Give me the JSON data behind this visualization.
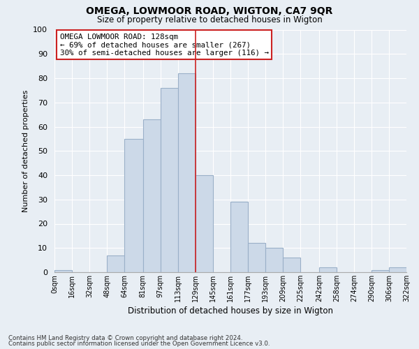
{
  "title": "OMEGA, LOWMOOR ROAD, WIGTON, CA7 9QR",
  "subtitle": "Size of property relative to detached houses in Wigton",
  "xlabel": "Distribution of detached houses by size in Wigton",
  "ylabel": "Number of detached properties",
  "bar_color": "#ccd9e8",
  "bar_edge_color": "#9ab0c8",
  "vline_color": "#cc2222",
  "vline_x": 129,
  "bin_edges": [
    0,
    16,
    32,
    48,
    64,
    81,
    97,
    113,
    129,
    145,
    161,
    177,
    193,
    209,
    225,
    242,
    258,
    274,
    290,
    306,
    322
  ],
  "bar_heights": [
    1,
    0,
    0,
    7,
    55,
    63,
    76,
    82,
    40,
    0,
    29,
    12,
    10,
    6,
    0,
    2,
    0,
    0,
    1,
    2
  ],
  "tick_labels": [
    "0sqm",
    "16sqm",
    "32sqm",
    "48sqm",
    "64sqm",
    "81sqm",
    "97sqm",
    "113sqm",
    "129sqm",
    "145sqm",
    "161sqm",
    "177sqm",
    "193sqm",
    "209sqm",
    "225sqm",
    "242sqm",
    "258sqm",
    "274sqm",
    "290sqm",
    "306sqm",
    "322sqm"
  ],
  "ylim": [
    0,
    100
  ],
  "yticks": [
    0,
    10,
    20,
    30,
    40,
    50,
    60,
    70,
    80,
    90,
    100
  ],
  "annotation_title": "OMEGA LOWMOOR ROAD: 128sqm",
  "annotation_line1": "← 69% of detached houses are smaller (267)",
  "annotation_line2": "30% of semi-detached houses are larger (116) →",
  "footnote1": "Contains HM Land Registry data © Crown copyright and database right 2024.",
  "footnote2": "Contains public sector information licensed under the Open Government Licence v3.0.",
  "background_color": "#e8eef4",
  "grid_color": "#ffffff"
}
